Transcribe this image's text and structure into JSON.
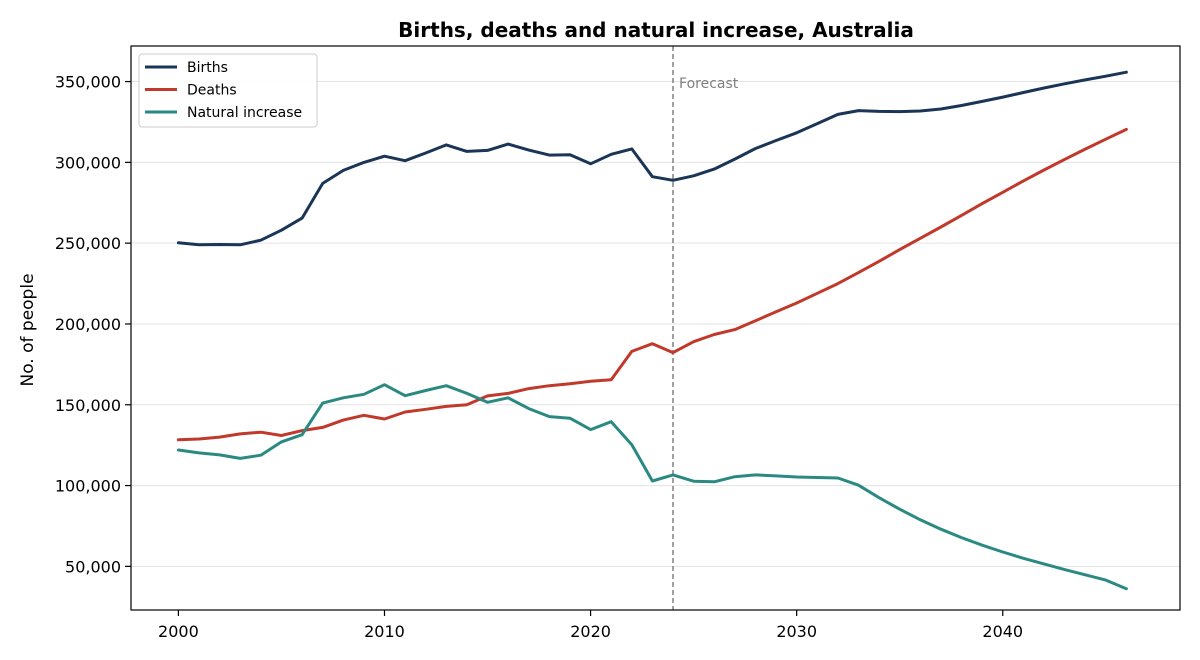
{
  "chart_data": {
    "type": "line",
    "title": "Births, deaths and natural increase, Australia",
    "xlabel": "",
    "ylabel": "No. of people",
    "xlim": [
      1997.7,
      2048.6
    ],
    "ylim": [
      23000,
      372000
    ],
    "xticks": [
      2000,
      2010,
      2020,
      2030,
      2040
    ],
    "xtick_labels": [
      "2000",
      "2010",
      "2020",
      "2030",
      "2040"
    ],
    "yticks": [
      50000,
      100000,
      150000,
      200000,
      250000,
      300000,
      350000
    ],
    "ytick_labels": [
      "50,000",
      "100,000",
      "150,000",
      "200,000",
      "250,000",
      "300,000",
      "350,000"
    ],
    "grid": "y",
    "legend": "top-left",
    "annotation": {
      "label": "Forecast",
      "x": 2024
    },
    "x": [
      2000,
      2001,
      2002,
      2003,
      2004,
      2005,
      2006,
      2007,
      2008,
      2009,
      2010,
      2011,
      2012,
      2013,
      2014,
      2015,
      2016,
      2017,
      2018,
      2019,
      2020,
      2021,
      2022,
      2023,
      2024,
      2025,
      2026,
      2027,
      2028,
      2029,
      2030,
      2031,
      2032,
      2033,
      2034,
      2035,
      2036,
      2037,
      2038,
      2039,
      2040,
      2041,
      2042,
      2043,
      2044,
      2045,
      2046
    ],
    "series": [
      {
        "name": "Births",
        "color": "#1b3556",
        "values": [
          250300,
          249000,
          249200,
          249000,
          251800,
          258000,
          265500,
          287000,
          295000,
          300000,
          303800,
          301000,
          305800,
          310800,
          306800,
          307400,
          311300,
          307600,
          304500,
          304700,
          299100,
          305000,
          308300,
          291100,
          288900,
          291700,
          295800,
          302000,
          308600,
          313500,
          318300,
          324000,
          329700,
          332000,
          331500,
          331400,
          331800,
          333000,
          335200,
          337700,
          340400,
          343200,
          346000,
          348600,
          351000,
          353300,
          355800
        ]
      },
      {
        "name": "Deaths",
        "color": "#c0392b",
        "values": [
          128300,
          128800,
          130000,
          132000,
          133000,
          131000,
          134000,
          136000,
          140500,
          143500,
          141200,
          145500,
          147200,
          149000,
          150000,
          155500,
          157000,
          160000,
          161800,
          163000,
          164500,
          165500,
          183000,
          187800,
          182300,
          189000,
          193500,
          196500,
          202000,
          207500,
          213000,
          219000,
          225000,
          231800,
          238800,
          246000,
          253000,
          260000,
          267200,
          274500,
          281500,
          288500,
          295300,
          301800,
          308200,
          314300,
          320400
        ]
      },
      {
        "name": "Natural increase",
        "color": "#2a8a82",
        "values": [
          122000,
          120200,
          119000,
          116800,
          118800,
          127000,
          131500,
          151000,
          154300,
          156500,
          162400,
          155600,
          158800,
          161800,
          157000,
          151500,
          154300,
          147600,
          142700,
          141700,
          134600,
          139500,
          125300,
          102800,
          106600,
          102700,
          102300,
          105500,
          106600,
          106000,
          105300,
          105000,
          104700,
          100200,
          92500,
          85400,
          78800,
          73000,
          67800,
          63100,
          58900,
          55000,
          51500,
          48000,
          44800,
          41500,
          36200
        ]
      }
    ]
  }
}
